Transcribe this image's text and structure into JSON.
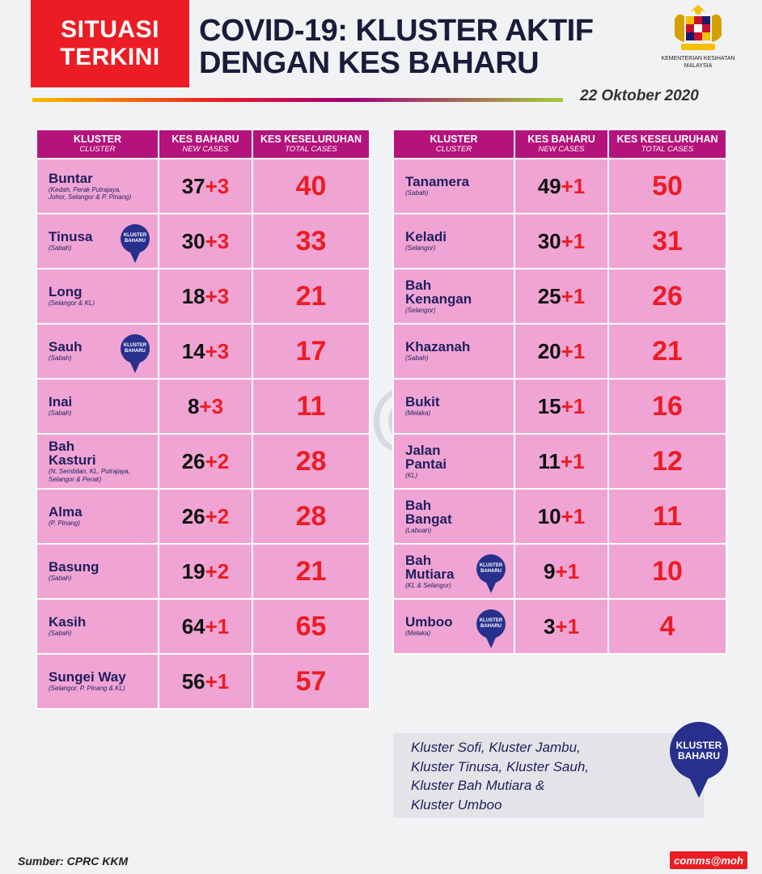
{
  "header": {
    "tag_line1": "SITUASI",
    "tag_line2": "TERKINI",
    "title_line1": "COVID-19: KLUSTER AKTIF",
    "title_line2": "DENGAN KES BAHARU",
    "ministry_line1": "KEMENTERIAN KESIHATAN",
    "ministry_line2": "MALAYSIA",
    "date": "22 Oktober 2020"
  },
  "columns": {
    "cluster": "KLUSTER",
    "cluster_sub": "CLUSTER",
    "new": "KES BAHARU",
    "new_sub": "NEW CASES",
    "total": "KES KESELURUHAN",
    "total_sub": "TOTAL CASES"
  },
  "pin_label": {
    "line1": "KLUSTER",
    "line2": "BAHARU"
  },
  "left_rows": [
    {
      "name1": "Buntar",
      "name2": "",
      "loc1": "(Kedah, Perak Putrajaya,",
      "loc2": "Johor, Selangor & P. Pinang)",
      "base": "37",
      "plus": "+3",
      "total": "40",
      "new_cluster": false
    },
    {
      "name1": "Tinusa",
      "name2": "",
      "loc1": "(Sabah)",
      "loc2": "",
      "base": "30",
      "plus": "+3",
      "total": "33",
      "new_cluster": true
    },
    {
      "name1": "Long",
      "name2": "",
      "loc1": "(Selangor & KL)",
      "loc2": "",
      "base": "18",
      "plus": "+3",
      "total": "21",
      "new_cluster": false
    },
    {
      "name1": "Sauh",
      "name2": "",
      "loc1": "(Sabah)",
      "loc2": "",
      "base": "14",
      "plus": "+3",
      "total": "17",
      "new_cluster": true
    },
    {
      "name1": "Inai",
      "name2": "",
      "loc1": "(Sabah)",
      "loc2": "",
      "base": "8",
      "plus": "+3",
      "total": "11",
      "new_cluster": false
    },
    {
      "name1": "Bah",
      "name2": "Kasturi",
      "loc1": "(N. Sembilan, KL, Putrajaya,",
      "loc2": "Selangor & Perak)",
      "base": "26",
      "plus": "+2",
      "total": "28",
      "new_cluster": false
    },
    {
      "name1": "Alma",
      "name2": "",
      "loc1": "(P. Pinang)",
      "loc2": "",
      "base": "26",
      "plus": "+2",
      "total": "28",
      "new_cluster": false
    },
    {
      "name1": "Basung",
      "name2": "",
      "loc1": "(Sabah)",
      "loc2": "",
      "base": "19",
      "plus": "+2",
      "total": "21",
      "new_cluster": false
    },
    {
      "name1": "Kasih",
      "name2": "",
      "loc1": "(Sabah)",
      "loc2": "",
      "base": "64",
      "plus": "+1",
      "total": "65",
      "new_cluster": false
    },
    {
      "name1": "Sungei Way",
      "name2": "",
      "loc1": "(Selangor, P. Pinang & KL)",
      "loc2": "",
      "base": "56",
      "plus": "+1",
      "total": "57",
      "new_cluster": false
    }
  ],
  "right_rows": [
    {
      "name1": "Tanamera",
      "name2": "",
      "loc1": "(Sabah)",
      "loc2": "",
      "base": "49",
      "plus": "+1",
      "total": "50",
      "new_cluster": false
    },
    {
      "name1": "Keladi",
      "name2": "",
      "loc1": "(Selangor)",
      "loc2": "",
      "base": "30",
      "plus": "+1",
      "total": "31",
      "new_cluster": false
    },
    {
      "name1": "Bah",
      "name2": "Kenangan",
      "loc1": "(Selangor)",
      "loc2": "",
      "base": "25",
      "plus": "+1",
      "total": "26",
      "new_cluster": false
    },
    {
      "name1": "Khazanah",
      "name2": "",
      "loc1": "(Sabah)",
      "loc2": "",
      "base": "20",
      "plus": "+1",
      "total": "21",
      "new_cluster": false
    },
    {
      "name1": "Bukit",
      "name2": "",
      "loc1": "(Melaka)",
      "loc2": "",
      "base": "15",
      "plus": "+1",
      "total": "16",
      "new_cluster": false
    },
    {
      "name1": "Jalan",
      "name2": "Pantai",
      "loc1": "(KL)",
      "loc2": "",
      "base": "11",
      "plus": "+1",
      "total": "12",
      "new_cluster": false
    },
    {
      "name1": "Bah",
      "name2": "Bangat",
      "loc1": "(Labuan)",
      "loc2": "",
      "base": "10",
      "plus": "+1",
      "total": "11",
      "new_cluster": false
    },
    {
      "name1": "Bah",
      "name2": "Mutiara",
      "loc1": "(KL & Selangor)",
      "loc2": "",
      "base": "9",
      "plus": "+1",
      "total": "10",
      "new_cluster": true
    },
    {
      "name1": "Umboo",
      "name2": "",
      "loc1": "(Melaka)",
      "loc2": "",
      "base": "3",
      "plus": "+1",
      "total": "4",
      "new_cluster": true
    }
  ],
  "note": {
    "line1": "Kluster Sofi, Kluster Jambu,",
    "line2": "Kluster Tinusa, Kluster Sauh,",
    "line3": "Kluster Bah Mutiara &",
    "line4": "Kluster Umboo"
  },
  "watermark": "comms@moh",
  "footer": {
    "source": "Sumber: CPRC KKM",
    "badge": "comms@moh"
  },
  "colors": {
    "accent_red": "#ec1c24",
    "header_magenta": "#b5137c",
    "row_pink": "#f0a4d4",
    "navy": "#1e1f5e",
    "pin_blue": "#27308c"
  }
}
